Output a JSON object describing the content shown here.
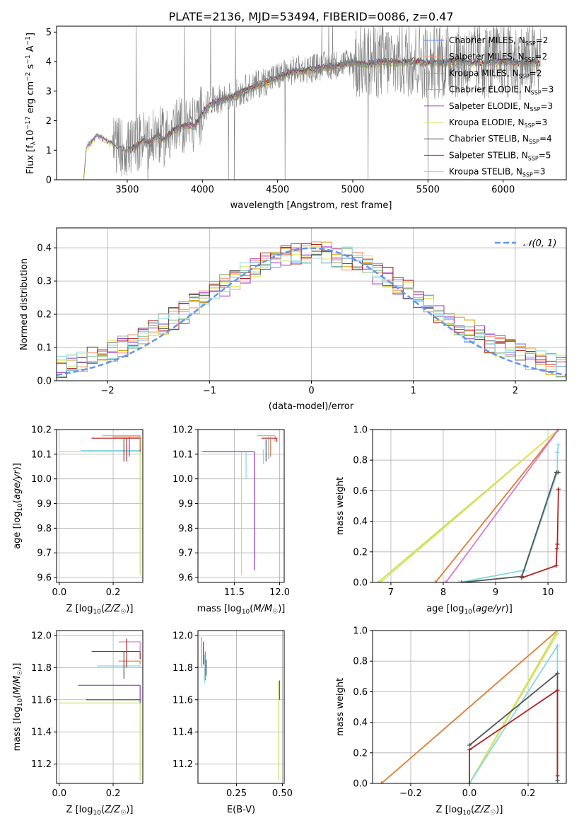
{
  "figure_title": "PLATE=2136, MJD=53494, FIBERID=0086, z=0.47",
  "colors": {
    "chabrier_miles": "#6495ed",
    "salpeter_miles": "#ff8c69",
    "kroupa_miles": "#d2a000",
    "chabrier_elodie": "#8fbc8f",
    "salpeter_elodie": "#9932cc",
    "kroupa_elodie": "#e0e060",
    "chabrier_stelib": "#555555",
    "salpeter_stelib": "#b22222",
    "kroupa_stelib": "#87d8e0",
    "data": "#808080",
    "normal": "#6495ed",
    "orange_line": "#e07b30",
    "pink_line": "#dd77cc",
    "lime": "#c8e060",
    "grid": "#b0b0b0"
  },
  "chart_data": [
    {
      "id": "spectrum",
      "type": "line",
      "xlabel": "wavelength [Angstrom, rest frame]",
      "ylabel": "Flux [f_λ 10⁻¹⁷ erg cm⁻² s⁻¹ A⁻¹]",
      "xlim": [
        3030,
        6420
      ],
      "ylim": [
        0,
        5.2
      ],
      "xticks": [
        3500,
        4000,
        4500,
        5000,
        5500,
        6000
      ],
      "yticks": [
        0,
        1,
        2,
        3,
        4,
        5
      ],
      "legend_position": "right",
      "legend": [
        {
          "base": "Chabrier MILES, N",
          "sub": "SSP",
          "tail": "=2",
          "color": "#6495ed"
        },
        {
          "base": "Salpeter MILES, N",
          "sub": "SSP",
          "tail": "=2",
          "color": "#ff8c69"
        },
        {
          "base": "Kroupa MILES, N",
          "sub": "SSP",
          "tail": "=2",
          "color": "#d2a000"
        },
        {
          "base": "Chabrier ELODIE, N",
          "sub": "SSP",
          "tail": "=3",
          "color": "#8fbc8f"
        },
        {
          "base": "Salpeter ELODIE, N",
          "sub": "SSP",
          "tail": "=3",
          "color": "#9932cc"
        },
        {
          "base": "Kroupa ELODIE, N",
          "sub": "SSP",
          "tail": "=3",
          "color": "#e0e060"
        },
        {
          "base": "Chabrier STELIB, N",
          "sub": "SSP",
          "tail": "=4",
          "color": "#555555"
        },
        {
          "base": "Salpeter STELIB, N",
          "sub": "SSP",
          "tail": "=5",
          "color": "#b22222"
        },
        {
          "base": "Kroupa STELIB, N",
          "sub": "SSP",
          "tail": "=3",
          "color": "#87d8e0"
        }
      ],
      "continuum": {
        "x": [
          3210,
          3230,
          3260,
          3300,
          3360,
          3420,
          3500,
          3560,
          3600,
          3650,
          3700,
          3750,
          3800,
          3850,
          3900,
          3950,
          4000,
          4050,
          4100,
          4200,
          4300,
          4400,
          4500,
          4600,
          4700,
          4800,
          4900,
          5000,
          5100,
          5200,
          5300,
          5400,
          5500,
          5600,
          5700,
          5800,
          5900,
          6000,
          6100,
          6200
        ],
        "y": [
          0.0,
          1.15,
          1.3,
          1.55,
          1.35,
          1.2,
          1.05,
          1.15,
          1.4,
          1.25,
          1.55,
          1.4,
          1.7,
          1.8,
          1.9,
          1.85,
          2.3,
          2.6,
          2.7,
          2.85,
          3.1,
          3.3,
          3.5,
          3.7,
          3.75,
          3.85,
          3.9,
          4.0,
          3.95,
          4.05,
          4.0,
          4.05,
          4.0,
          4.0,
          4.05,
          4.0,
          4.0,
          4.05,
          4.0,
          4.0
        ]
      }
    },
    {
      "id": "residuals",
      "type": "line",
      "xlabel": "(data-model)/error",
      "ylabel": "Normed distribution",
      "xlim": [
        -2.5,
        2.5
      ],
      "ylim": [
        0,
        0.46
      ],
      "xticks": [
        -2,
        -1,
        0,
        1,
        2
      ],
      "xtick_labels": [
        "−2",
        "−1",
        "0",
        "1",
        "2"
      ],
      "yticks": [
        0.0,
        0.1,
        0.2,
        0.3,
        0.4
      ],
      "ytick_labels": [
        "0.0",
        "0.1",
        "0.2",
        "0.3",
        "0.4"
      ],
      "legend": "𝒩(0, 1)",
      "legend_position": "top-right",
      "bin_width": 0.1
    },
    {
      "id": "age_vs_z",
      "type": "line",
      "xlabel": "Z [log₁₀(Z/Z☉)]",
      "ylabel": "age  [log₁₀(age/yr)]",
      "xlim": [
        -0.01,
        0.31
      ],
      "ylim": [
        9.58,
        10.2
      ],
      "xticks": [
        0.0,
        0.2
      ],
      "xtick_labels": [
        "0.0",
        "0.2"
      ],
      "yticks": [
        9.6,
        9.7,
        9.8,
        9.9,
        10.0,
        10.1,
        10.2
      ],
      "ytick_labels": [
        "9.6",
        "9.7",
        "9.8",
        "9.9",
        "10.0",
        "10.1",
        "10.2"
      ]
    },
    {
      "id": "age_vs_mass",
      "type": "line",
      "xlabel": "mass [log₁₀(M/M☉)]",
      "ylabel": "",
      "xlim": [
        11.1,
        12.05
      ],
      "ylim": [
        9.58,
        10.2
      ],
      "xticks": [
        11.5,
        12.0
      ],
      "xtick_labels": [
        "11.5",
        "12.0"
      ],
      "yticks": [
        9.6,
        9.7,
        9.8,
        9.9,
        10.0,
        10.1,
        10.2
      ],
      "ytick_labels": [
        "9.6",
        "9.7",
        "9.8",
        "9.9",
        "10.0",
        "10.1",
        "10.2"
      ]
    },
    {
      "id": "weight_vs_age",
      "type": "line",
      "xlabel": "age  [log₁₀(age/yr)]",
      "ylabel": "mass weight",
      "xlim": [
        6.65,
        10.35
      ],
      "ylim": [
        0,
        1.0
      ],
      "xticks": [
        7,
        8,
        9,
        10
      ],
      "xtick_labels": [
        "7",
        "8",
        "9",
        "10"
      ],
      "yticks": [
        0.0,
        0.2,
        0.4,
        0.6,
        0.8,
        1.0
      ],
      "ytick_labels": [
        "0.0",
        "0.2",
        "0.4",
        "0.6",
        "0.8",
        "1.0"
      ],
      "series": [
        {
          "color": "#c8e060",
          "x": [
            6.75,
            10.2
          ],
          "y": [
            0.0,
            1.0
          ]
        },
        {
          "color": "#e0e060",
          "x": [
            6.8,
            10.2
          ],
          "y": [
            0.0,
            1.0
          ]
        },
        {
          "color": "#e07b30",
          "x": [
            7.85,
            10.2
          ],
          "y": [
            0.0,
            1.0
          ]
        },
        {
          "color": "#dd77cc",
          "x": [
            8.05,
            10.2
          ],
          "y": [
            0.0,
            1.0
          ]
        },
        {
          "color": "#87d8e0",
          "x": [
            8.3,
            9.55,
            10.18,
            10.18,
            10.2
          ],
          "y": [
            0.0,
            0.08,
            0.72,
            0.85,
            0.9
          ]
        },
        {
          "color": "#555555",
          "x": [
            8.35,
            9.5,
            10.16,
            10.2
          ],
          "y": [
            0.0,
            0.04,
            0.72,
            0.72
          ]
        },
        {
          "color": "#b22222",
          "x": [
            9.5,
            10.16,
            10.17,
            10.18,
            10.2
          ],
          "y": [
            0.03,
            0.11,
            0.22,
            0.25,
            0.61
          ]
        }
      ]
    },
    {
      "id": "mass_vs_z",
      "type": "line",
      "xlabel": "Z [log₁₀(Z/Z☉)]",
      "ylabel": "mass [log₁₀(M/M☉)]",
      "xlim": [
        -0.01,
        0.31
      ],
      "ylim": [
        11.08,
        12.03
      ],
      "xticks": [
        0.0,
        0.2
      ],
      "xtick_labels": [
        "0.0",
        "0.2"
      ],
      "yticks": [
        11.2,
        11.4,
        11.6,
        11.8,
        12.0
      ],
      "ytick_labels": [
        "11.2",
        "11.4",
        "11.6",
        "11.8",
        "12.0"
      ]
    },
    {
      "id": "mass_vs_ebv",
      "type": "line",
      "xlabel": "E(B-V)",
      "ylabel": "",
      "xlim": [
        0.04,
        0.51
      ],
      "ylim": [
        11.08,
        12.03
      ],
      "xticks": [
        0.25,
        0.5
      ],
      "xtick_labels": [
        "0.25",
        "0.50"
      ],
      "yticks": [
        11.2,
        11.4,
        11.6,
        11.8,
        12.0
      ],
      "ytick_labels": [
        "11.2",
        "11.4",
        "11.6",
        "11.8",
        "12.0"
      ]
    },
    {
      "id": "weight_vs_z",
      "type": "line",
      "xlabel": "Z [log₁₀(Z/Z☉)]",
      "ylabel": "mass weight",
      "xlim": [
        -0.33,
        0.33
      ],
      "ylim": [
        0,
        1.0
      ],
      "xticks": [
        -0.2,
        0.0,
        0.2
      ],
      "xtick_labels": [
        "−0.2",
        "0.0",
        "0.2"
      ],
      "yticks": [
        0.0,
        0.2,
        0.4,
        0.6,
        0.8,
        1.0
      ],
      "ytick_labels": [
        "0.0",
        "0.2",
        "0.4",
        "0.6",
        "0.8",
        "1.0"
      ],
      "series": [
        {
          "color": "#e07b30",
          "x": [
            -0.3,
            0.3
          ],
          "y": [
            0.0,
            1.0
          ]
        },
        {
          "color": "#c8e060",
          "x": [
            0.0,
            0.3
          ],
          "y": [
            0.0,
            1.0
          ]
        },
        {
          "color": "#e0e060",
          "x": [
            0.0,
            0.3
          ],
          "y": [
            0.0,
            0.98
          ]
        },
        {
          "color": "#87d8e0",
          "x": [
            0.0,
            0.3,
            0.3
          ],
          "y": [
            0.0,
            0.9,
            0.0
          ]
        },
        {
          "color": "#555555",
          "x": [
            0.0,
            0.3,
            0.3
          ],
          "y": [
            0.25,
            0.72,
            0.02
          ]
        },
        {
          "color": "#b22222",
          "x": [
            0.0,
            0.0,
            0.3,
            0.3
          ],
          "y": [
            0.0,
            0.22,
            0.61,
            0.05
          ]
        }
      ]
    }
  ]
}
